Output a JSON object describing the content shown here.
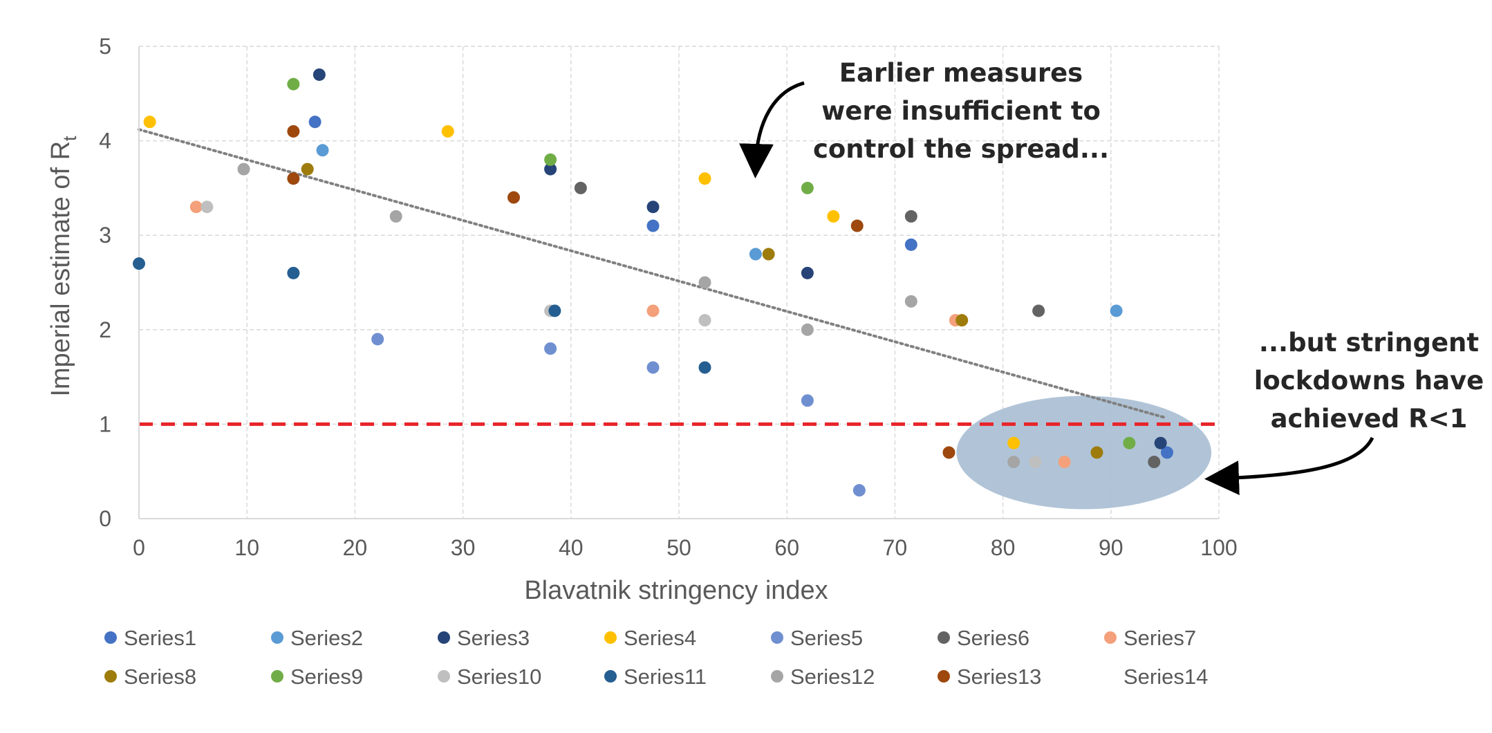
{
  "chart_data": {
    "type": "scatter",
    "title": "",
    "xlabel": "Blavatnik stringency index",
    "ylabel_main": "Imperial estimate of R",
    "ylabel_sub": "t",
    "xlim": [
      0,
      100
    ],
    "ylim": [
      0,
      5
    ],
    "x_ticks": [
      "0",
      "10",
      "20",
      "30",
      "40",
      "50",
      "60",
      "70",
      "80",
      "90",
      "100"
    ],
    "y_ticks": [
      "0",
      "1",
      "2",
      "3",
      "4",
      "5"
    ],
    "grid": true,
    "legend_position": "bottom",
    "reference_line": {
      "y": 1,
      "color": "#E8242A",
      "style": "dashed"
    },
    "trendline": {
      "x": [
        0,
        95
      ],
      "y": [
        4.12,
        1.07
      ],
      "color": "#808080",
      "style": "dotted"
    },
    "highlight_region": {
      "cx": 87.5,
      "cy": 0.7,
      "rx": 11.8,
      "ry": 0.6,
      "color": "#A9BED3"
    },
    "series": [
      {
        "name": "Series1",
        "color": "#4472C4",
        "points": [
          [
            16.3,
            4.2
          ],
          [
            47.6,
            3.1
          ],
          [
            71.5,
            2.9
          ],
          [
            95.2,
            0.7
          ]
        ]
      },
      {
        "name": "Series2",
        "color": "#5B9BD5",
        "points": [
          [
            17.0,
            3.9
          ],
          [
            57.1,
            2.8
          ],
          [
            90.5,
            2.2
          ]
        ]
      },
      {
        "name": "Series3",
        "color": "#264478",
        "points": [
          [
            16.7,
            4.7
          ],
          [
            38.1,
            3.7
          ],
          [
            47.6,
            3.3
          ],
          [
            61.9,
            2.6
          ],
          [
            94.6,
            0.8
          ]
        ]
      },
      {
        "name": "Series4",
        "color": "#FFC000",
        "points": [
          [
            1.0,
            4.2
          ],
          [
            28.6,
            4.1
          ],
          [
            52.4,
            3.6
          ],
          [
            64.3,
            3.2
          ],
          [
            81.0,
            0.8
          ]
        ]
      },
      {
        "name": "Series5",
        "color": "#6F8FD0",
        "points": [
          [
            22.1,
            1.9
          ],
          [
            38.1,
            1.8
          ],
          [
            47.6,
            1.6
          ],
          [
            61.9,
            1.25
          ],
          [
            66.7,
            0.3
          ]
        ]
      },
      {
        "name": "Series6",
        "color": "#636363",
        "points": [
          [
            40.9,
            3.5
          ],
          [
            71.5,
            3.2
          ],
          [
            83.3,
            2.2
          ],
          [
            94.0,
            0.6
          ]
        ]
      },
      {
        "name": "Series7",
        "color": "#F4A07A",
        "points": [
          [
            5.3,
            3.3
          ],
          [
            47.6,
            2.2
          ],
          [
            75.6,
            2.1
          ],
          [
            85.7,
            0.6
          ]
        ]
      },
      {
        "name": "Series8",
        "color": "#9E7C0C",
        "points": [
          [
            15.6,
            3.7
          ],
          [
            58.3,
            2.8
          ],
          [
            76.2,
            2.1
          ],
          [
            88.7,
            0.7
          ]
        ]
      },
      {
        "name": "Series9",
        "color": "#70AD47",
        "points": [
          [
            14.3,
            4.6
          ],
          [
            38.1,
            3.8
          ],
          [
            61.9,
            3.5
          ],
          [
            91.7,
            0.8
          ]
        ]
      },
      {
        "name": "Series10",
        "color": "#BFBFBF",
        "points": [
          [
            6.3,
            3.3
          ],
          [
            38.1,
            2.2
          ],
          [
            52.4,
            2.1
          ],
          [
            83.0,
            0.6
          ]
        ]
      },
      {
        "name": "Series11",
        "color": "#255E91",
        "points": [
          [
            0.0,
            2.7
          ],
          [
            14.3,
            2.6
          ],
          [
            38.5,
            2.2
          ],
          [
            52.4,
            1.6
          ]
        ]
      },
      {
        "name": "Series12",
        "color": "#A5A5A5",
        "points": [
          [
            9.7,
            3.7
          ],
          [
            23.8,
            3.2
          ],
          [
            52.4,
            2.5
          ],
          [
            61.9,
            2.0
          ],
          [
            71.5,
            2.3
          ],
          [
            81.0,
            0.6
          ]
        ]
      },
      {
        "name": "Series13",
        "color": "#9E480E",
        "points": [
          [
            14.3,
            4.1
          ],
          [
            14.3,
            3.6
          ],
          [
            34.7,
            3.4
          ],
          [
            66.5,
            3.1
          ],
          [
            75.0,
            0.7
          ]
        ]
      },
      {
        "name": "Series14",
        "color": "#FFFFFF",
        "points": []
      }
    ]
  },
  "annotations": {
    "top": [
      "Earlier measures",
      "were insufficient to",
      "control the spread..."
    ],
    "right": [
      "...but stringent",
      "lockdowns have",
      "achieved R<1"
    ]
  }
}
